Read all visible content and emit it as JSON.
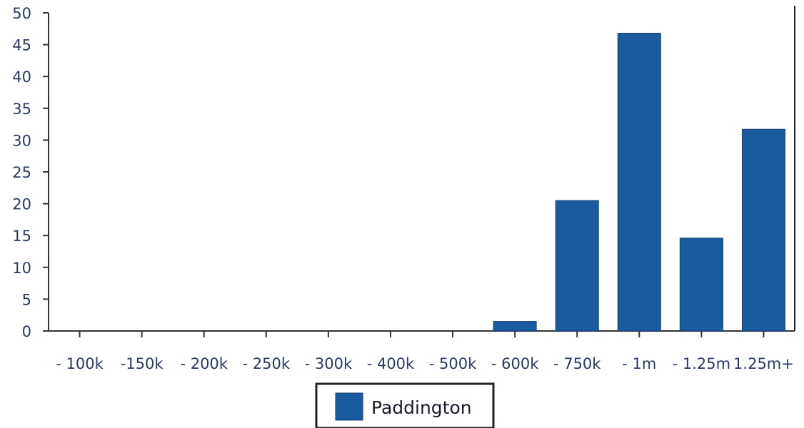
{
  "chart_data": {
    "type": "bar",
    "categories": [
      "100k",
      "150k",
      "200k",
      "250k",
      "300k",
      "400k",
      "500k",
      "600k",
      "750k",
      "1m",
      "1.25m",
      "1.25m+"
    ],
    "x_tick_labels": [
      "- 100k",
      "-150k",
      "- 200k",
      "- 250k",
      "- 300k",
      "- 400k",
      "- 500k",
      "- 600k",
      "- 750k",
      "- 1m",
      "- 1.25m",
      "1.25m+"
    ],
    "series": [
      {
        "name": "Paddington",
        "values": [
          0,
          0,
          0,
          0,
          0,
          0,
          0,
          1.5,
          20.5,
          46.8,
          14.6,
          31.7
        ]
      }
    ],
    "title": "",
    "xlabel": "",
    "ylabel": "",
    "ylim": [
      0,
      50
    ],
    "yticks": [
      0,
      5,
      10,
      15,
      20,
      25,
      30,
      35,
      40,
      45,
      50
    ],
    "grid": false,
    "legend": "bottom-center",
    "colors": {
      "bar": "#1a5a9e",
      "bar_edge": "#0f3f75",
      "axis": "#333333"
    }
  }
}
